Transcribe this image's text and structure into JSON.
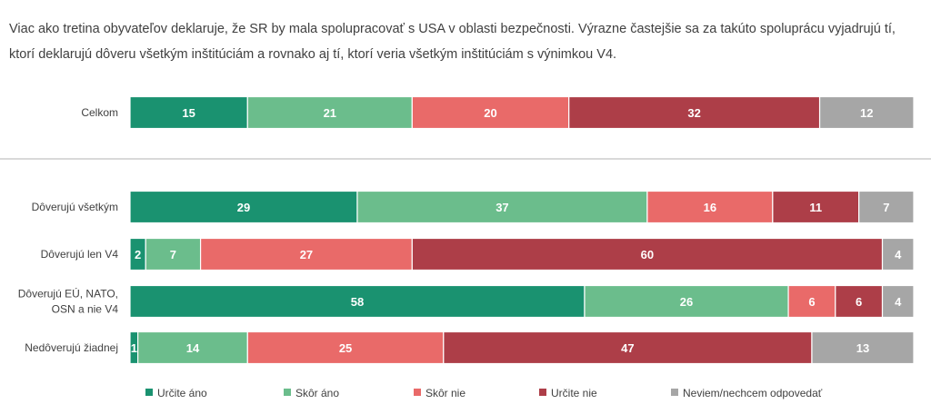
{
  "intro": {
    "line1": "Viac ako tretina obyvateľov deklaruje, že SR by mala spolupracovať s USA v oblasti bezpečnosti. Výrazne častejšie sa za takúto spoluprácu vyjadrujú tí,",
    "line2": "ktorí deklarujú dôveru všetkým inštitúciám a rovnako aj tí, ktorí veria všetkým inštitúciám s výnimkou V4."
  },
  "chart_data": {
    "type": "bar",
    "orientation": "horizontal",
    "stacked": true,
    "categories": [
      [
        "Celkom"
      ],
      [
        "Dôverujú všetkým"
      ],
      [
        "Dôverujú len V4"
      ],
      [
        "Dôverujú EÚ, NATO,",
        "OSN a nie V4"
      ],
      [
        "Nedôverujú žiadnej"
      ]
    ],
    "series": [
      {
        "name": "Určite áno",
        "color": "#1a9270",
        "values": [
          15,
          29,
          2,
          58,
          1
        ]
      },
      {
        "name": "Skôr áno",
        "color": "#6bbd8c",
        "values": [
          21,
          37,
          7,
          26,
          14
        ]
      },
      {
        "name": "Skôr nie",
        "color": "#e96a69",
        "values": [
          20,
          16,
          27,
          6,
          25
        ]
      },
      {
        "name": "Určite nie",
        "color": "#ad3e48",
        "values": [
          32,
          11,
          60,
          6,
          47
        ]
      },
      {
        "name": "Neviem/nechcem odpovedať",
        "color": "#a6a6a6",
        "values": [
          12,
          7,
          4,
          4,
          13
        ]
      }
    ],
    "xlim": [
      0,
      100
    ],
    "legend_position": "bottom",
    "grid": false,
    "separator_after_first_category": true
  }
}
